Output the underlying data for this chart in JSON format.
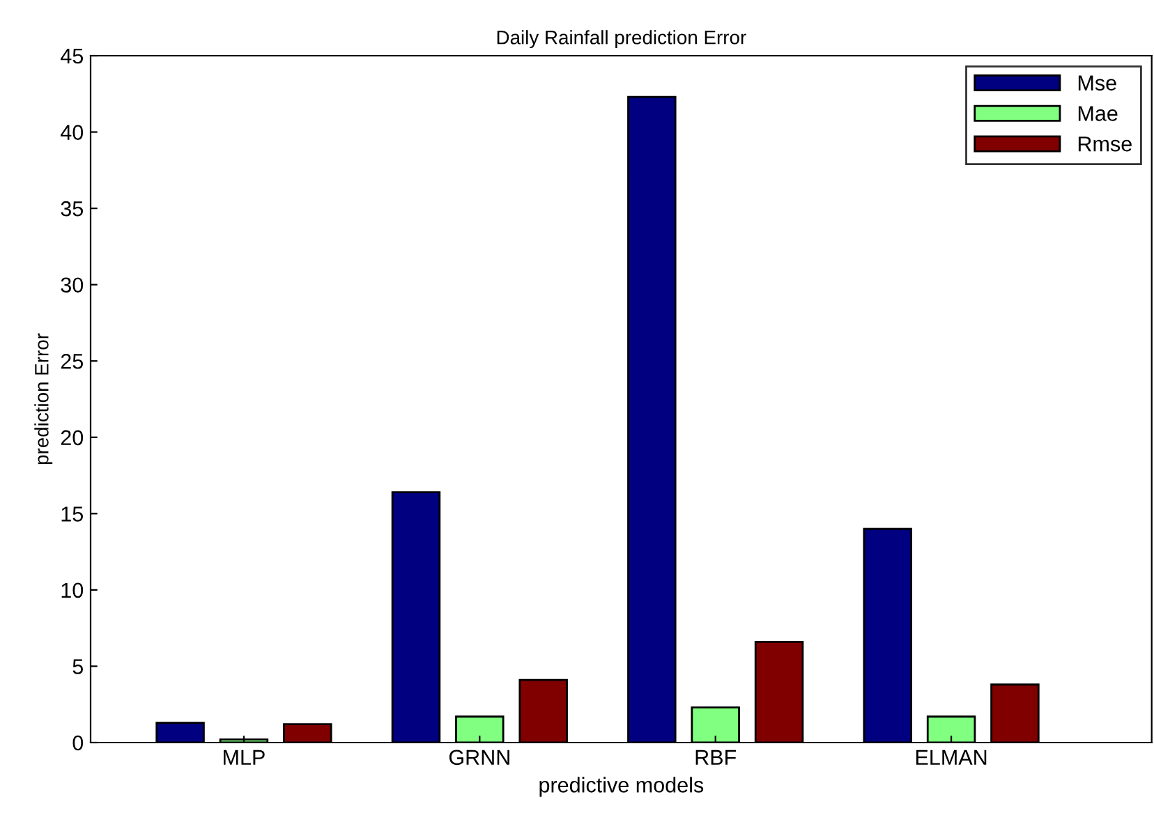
{
  "chart_data": {
    "type": "bar",
    "title": "Daily Rainfall prediction Error",
    "xlabel": "predictive models",
    "ylabel": "prediction Error",
    "categories": [
      "MLP",
      "GRNN",
      "RBF",
      "ELMAN"
    ],
    "series": [
      {
        "name": "Mse",
        "color": "#000080",
        "values": [
          1.3,
          16.4,
          42.3,
          14.0
        ]
      },
      {
        "name": "Mae",
        "color": "#80ff80",
        "values": [
          0.2,
          1.7,
          2.3,
          1.7
        ]
      },
      {
        "name": "Rmse",
        "color": "#800000",
        "values": [
          1.2,
          4.1,
          6.6,
          3.8
        ]
      }
    ],
    "ylim": [
      0,
      45
    ],
    "yticks": [
      0,
      5,
      10,
      15,
      20,
      25,
      30,
      35,
      40,
      45
    ],
    "grid": false,
    "legend": "top right"
  }
}
